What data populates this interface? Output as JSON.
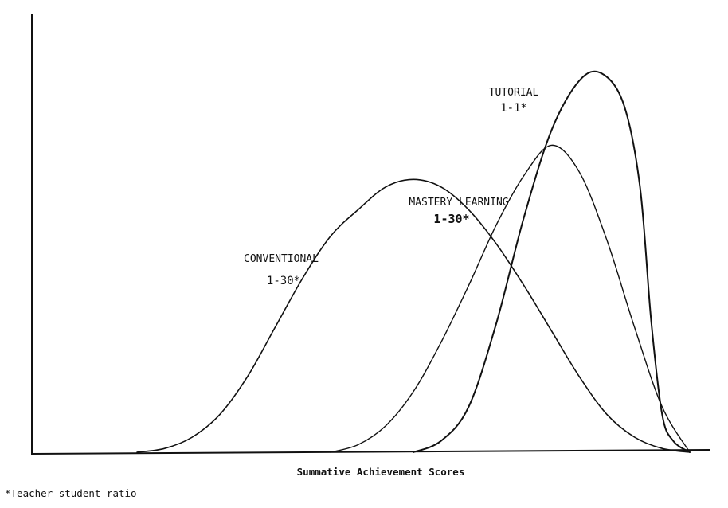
{
  "chart_data": {
    "type": "line",
    "title": "",
    "xlabel": "Summative Achievement Scores",
    "ylabel": "",
    "footnote": "*Teacher-student ratio",
    "grid": false,
    "legend": "none",
    "series": [
      {
        "name": "CONVENTIONAL",
        "ratio": "1-30*",
        "stroke_width": 1.6,
        "points": [
          [
            0,
            0
          ],
          [
            5,
            1
          ],
          [
            10,
            4
          ],
          [
            15,
            10
          ],
          [
            20,
            20
          ],
          [
            25,
            33
          ],
          [
            30,
            46
          ],
          [
            35,
            57
          ],
          [
            40,
            64
          ],
          [
            45,
            70
          ],
          [
            50,
            72
          ],
          [
            55,
            70
          ],
          [
            60,
            64
          ],
          [
            65,
            55
          ],
          [
            70,
            44
          ],
          [
            75,
            32
          ],
          [
            80,
            20
          ],
          [
            85,
            10
          ],
          [
            90,
            4
          ],
          [
            95,
            1
          ],
          [
            100,
            0
          ]
        ]
      },
      {
        "name": "MASTERY LEARNING",
        "ratio": "1-30*",
        "stroke_width": 1.4,
        "points": [
          [
            35,
            0
          ],
          [
            40,
            2
          ],
          [
            45,
            7
          ],
          [
            50,
            16
          ],
          [
            55,
            29
          ],
          [
            60,
            44
          ],
          [
            65,
            60
          ],
          [
            70,
            73
          ],
          [
            75,
            81
          ],
          [
            80,
            74
          ],
          [
            85,
            56
          ],
          [
            90,
            33
          ],
          [
            95,
            12
          ],
          [
            100,
            0
          ]
        ]
      },
      {
        "name": "TUTORIAL",
        "ratio": "1-1*",
        "stroke_width": 2.0,
        "points": [
          [
            50,
            0
          ],
          [
            55,
            3
          ],
          [
            60,
            12
          ],
          [
            65,
            34
          ],
          [
            70,
            62
          ],
          [
            75,
            85
          ],
          [
            80,
            98
          ],
          [
            84,
            100
          ],
          [
            88,
            92
          ],
          [
            91,
            70
          ],
          [
            93,
            35
          ],
          [
            95,
            10
          ],
          [
            97,
            3
          ],
          [
            100,
            0
          ]
        ]
      }
    ]
  }
}
